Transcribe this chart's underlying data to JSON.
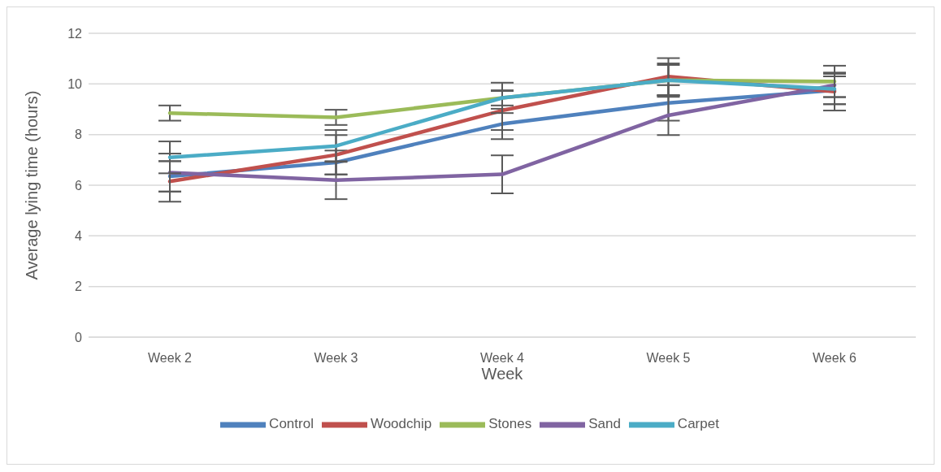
{
  "chart_data": {
    "type": "line",
    "xlabel": "Week",
    "ylabel": "Average lying time (hours)",
    "categories": [
      "Week 2",
      "Week 3",
      "Week 4",
      "Week 5",
      "Week 6"
    ],
    "series": [
      {
        "name": "Control",
        "color": "#4f81bd",
        "values": [
          6.35,
          6.9,
          8.42,
          9.25,
          9.75
        ],
        "errors": [
          0.6,
          0.47,
          0.6,
          0.7,
          0.55
        ]
      },
      {
        "name": "Woodchip",
        "color": "#c0504d",
        "values": [
          6.15,
          7.2,
          8.95,
          10.29,
          9.7
        ],
        "errors": [
          0.8,
          0.78,
          0.77,
          0.73,
          0.75
        ]
      },
      {
        "name": "Stones",
        "color": "#9bbb59",
        "values": [
          8.85,
          8.68,
          9.45,
          10.15,
          10.1
        ],
        "errors": [
          0.3,
          0.3,
          0.6,
          0.66,
          0.62
        ]
      },
      {
        "name": "Sand",
        "color": "#8064a2",
        "values": [
          6.5,
          6.2,
          6.43,
          8.76,
          9.95
        ],
        "errors": [
          0.75,
          0.75,
          0.75,
          0.78,
          0.47
        ]
      },
      {
        "name": "Carpet",
        "color": "#4bacc6",
        "values": [
          7.1,
          7.55,
          9.45,
          10.15,
          9.8
        ],
        "errors": [
          0.63,
          0.63,
          0.3,
          0.6,
          0.6
        ]
      }
    ],
    "ylim": [
      0,
      12
    ],
    "yticks": [
      0,
      2,
      4,
      6,
      8,
      10,
      12
    ],
    "grid": "y",
    "legend": "bottom",
    "marker": "none",
    "line_style": "solid"
  }
}
